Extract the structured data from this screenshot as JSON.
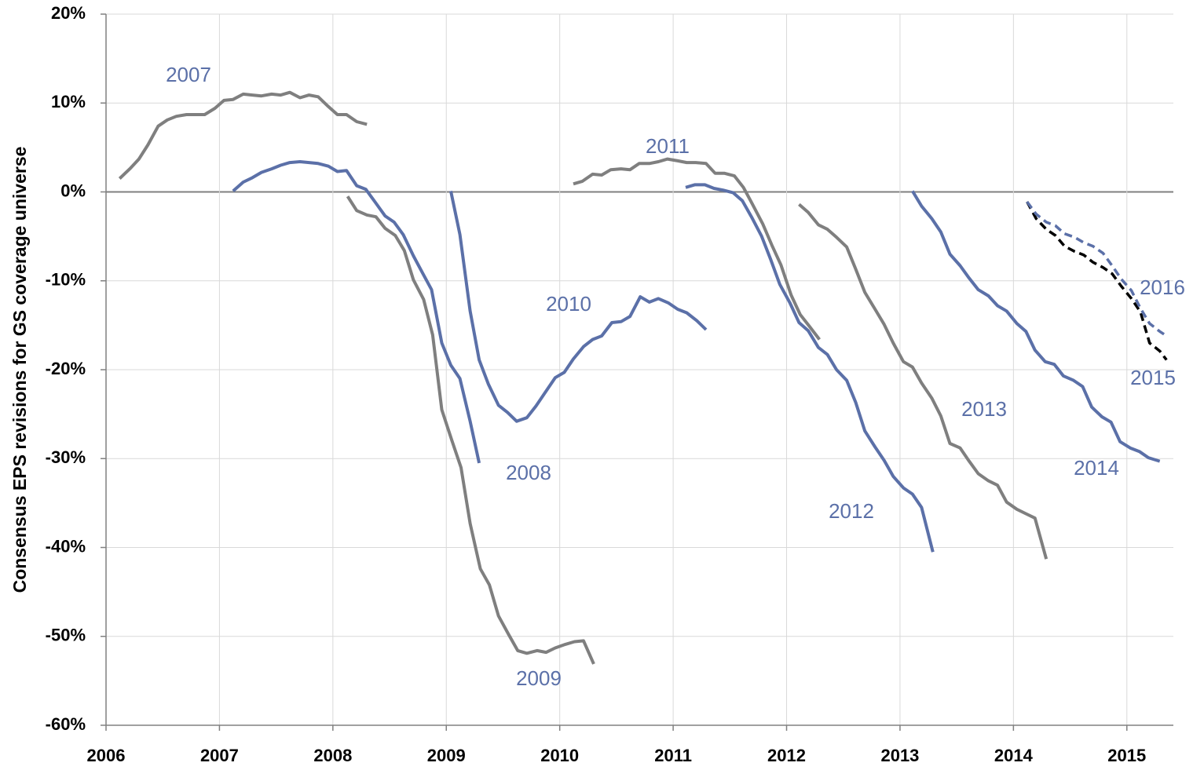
{
  "chart_data": {
    "type": "line",
    "y_axis_label": "Consensus EPS revisions for GS coverage universe",
    "xlim": [
      2006,
      2015.41
    ],
    "xticks": [
      2006,
      2007,
      2008,
      2009,
      2010,
      2011,
      2012,
      2013,
      2014,
      2015
    ],
    "ylim": [
      -60,
      20
    ],
    "yticks": [
      {
        "value": -60,
        "label": "-60%"
      },
      {
        "value": -50,
        "label": "-50%"
      },
      {
        "value": -40,
        "label": "-40%"
      },
      {
        "value": -30,
        "label": "-30%"
      },
      {
        "value": -20,
        "label": "-20%"
      },
      {
        "value": -10,
        "label": "-10%"
      },
      {
        "value": 0,
        "label": "0%"
      },
      {
        "value": 10,
        "label": "10%"
      },
      {
        "value": 20,
        "label": "20%"
      }
    ],
    "grid": true,
    "series": [
      {
        "name": "2007",
        "color": "#7f7f7f",
        "dash": false,
        "x": [
          2006.12,
          2006.21,
          2006.29,
          2006.37,
          2006.46,
          2006.54,
          2006.62,
          2006.71,
          2006.79,
          2006.87,
          2006.96,
          2007.04,
          2007.12,
          2007.21,
          2007.29,
          2007.37,
          2007.46,
          2007.54,
          2007.62,
          2007.71,
          2007.79,
          2007.87,
          2007.96,
          2008.04,
          2008.12,
          2008.21,
          2008.3
        ],
        "values": [
          1.5,
          2.6,
          3.7,
          5.3,
          7.4,
          8.1,
          8.5,
          8.7,
          8.7,
          8.7,
          9.4,
          10.3,
          10.4,
          11.0,
          10.9,
          10.8,
          11.0,
          10.9,
          11.2,
          10.6,
          10.9,
          10.7,
          9.6,
          8.7,
          8.7,
          7.9,
          7.6
        ]
      },
      {
        "name": "2008",
        "color": "#5b70a8",
        "dash": false,
        "x": [
          2007.12,
          2007.21,
          2007.29,
          2007.37,
          2007.46,
          2007.54,
          2007.62,
          2007.71,
          2007.79,
          2007.87,
          2007.96,
          2008.04,
          2008.12,
          2008.21,
          2008.29,
          2008.37,
          2008.46,
          2008.54,
          2008.62,
          2008.71,
          2008.79,
          2008.87,
          2008.96,
          2009.04,
          2009.12,
          2009.21,
          2009.29
        ],
        "values": [
          0.1,
          1.1,
          1.6,
          2.2,
          2.6,
          3.0,
          3.3,
          3.4,
          3.3,
          3.2,
          2.9,
          2.3,
          2.4,
          0.7,
          0.3,
          -1.1,
          -2.7,
          -3.4,
          -4.8,
          -7.2,
          -9.1,
          -11.0,
          -17.0,
          -19.5,
          -21.0,
          -25.8,
          -30.5
        ]
      },
      {
        "name": "2009",
        "color": "#7f7f7f",
        "dash": false,
        "x": [
          2008.13,
          2008.21,
          2008.3,
          2008.38,
          2008.46,
          2008.55,
          2008.63,
          2008.71,
          2008.8,
          2008.88,
          2008.96,
          2009.05,
          2009.13,
          2009.21,
          2009.3,
          2009.38,
          2009.46,
          2009.55,
          2009.63,
          2009.71,
          2009.8,
          2009.88,
          2009.96,
          2010.05,
          2010.13,
          2010.21,
          2010.3
        ],
        "values": [
          -0.5,
          -2.1,
          -2.6,
          -2.8,
          -4.1,
          -4.9,
          -6.6,
          -9.9,
          -12.1,
          -16.1,
          -24.5,
          -28.0,
          -31.0,
          -37.3,
          -42.4,
          -44.2,
          -47.7,
          -49.8,
          -51.6,
          -51.9,
          -51.6,
          -51.8,
          -51.3,
          -50.9,
          -50.6,
          -50.5,
          -53.1
        ]
      },
      {
        "name": "2010",
        "color": "#5b70a8",
        "dash": false,
        "x": [
          2009.04,
          2009.12,
          2009.21,
          2009.29,
          2009.37,
          2009.46,
          2009.54,
          2009.62,
          2009.71,
          2009.79,
          2009.87,
          2009.96,
          2010.04,
          2010.12,
          2010.21,
          2010.29,
          2010.37,
          2010.46,
          2010.54,
          2010.62,
          2010.71,
          2010.79,
          2010.87,
          2010.96,
          2011.04,
          2011.12,
          2011.21,
          2011.29
        ],
        "values": [
          0.1,
          -4.8,
          -13.4,
          -18.9,
          -21.6,
          -24.0,
          -24.8,
          -25.8,
          -25.4,
          -24.1,
          -22.6,
          -20.9,
          -20.3,
          -18.8,
          -17.4,
          -16.6,
          -16.2,
          -14.7,
          -14.6,
          -14.0,
          -11.8,
          -12.4,
          -12.0,
          -12.5,
          -13.2,
          -13.6,
          -14.5,
          -15.5
        ]
      },
      {
        "name": "2011",
        "color": "#7f7f7f",
        "dash": false,
        "x": [
          2010.12,
          2010.2,
          2010.29,
          2010.37,
          2010.45,
          2010.54,
          2010.62,
          2010.7,
          2010.79,
          2010.87,
          2010.95,
          2011.04,
          2011.12,
          2011.2,
          2011.29,
          2011.37,
          2011.45,
          2011.54,
          2011.62,
          2011.7,
          2011.79,
          2011.87,
          2011.95,
          2012.04,
          2012.12,
          2012.2,
          2012.29
        ],
        "values": [
          0.9,
          1.2,
          2.0,
          1.9,
          2.5,
          2.6,
          2.5,
          3.2,
          3.2,
          3.4,
          3.7,
          3.5,
          3.3,
          3.3,
          3.2,
          2.1,
          2.1,
          1.8,
          0.5,
          -1.4,
          -3.6,
          -6.0,
          -8.2,
          -11.6,
          -13.8,
          -15.1,
          -16.6
        ]
      },
      {
        "name": "2012",
        "color": "#5b70a8",
        "dash": false,
        "x": [
          2011.11,
          2011.19,
          2011.28,
          2011.36,
          2011.44,
          2011.53,
          2011.61,
          2011.69,
          2011.78,
          2011.86,
          2011.94,
          2012.03,
          2012.11,
          2012.19,
          2012.28,
          2012.36,
          2012.44,
          2012.53,
          2012.61,
          2012.69,
          2012.78,
          2012.86,
          2012.94,
          2013.03,
          2013.11,
          2013.19,
          2013.29
        ],
        "values": [
          0.5,
          0.8,
          0.8,
          0.4,
          0.2,
          -0.1,
          -1.0,
          -2.8,
          -5.0,
          -7.6,
          -10.4,
          -12.5,
          -14.7,
          -15.6,
          -17.5,
          -18.3,
          -20.0,
          -21.2,
          -23.7,
          -26.9,
          -28.7,
          -30.2,
          -32.0,
          -33.3,
          -34.0,
          -35.5,
          -40.5
        ]
      },
      {
        "name": "2013",
        "color": "#7f7f7f",
        "dash": false,
        "x": [
          2012.11,
          2012.19,
          2012.28,
          2012.36,
          2012.44,
          2012.53,
          2012.61,
          2012.69,
          2012.78,
          2012.86,
          2012.94,
          2013.03,
          2013.11,
          2013.19,
          2013.28,
          2013.36,
          2013.44,
          2013.53,
          2013.61,
          2013.69,
          2013.78,
          2013.86,
          2013.94,
          2014.03,
          2014.11,
          2014.19,
          2014.29
        ],
        "values": [
          -1.4,
          -2.3,
          -3.7,
          -4.2,
          -5.1,
          -6.2,
          -8.7,
          -11.3,
          -13.2,
          -14.9,
          -17.0,
          -19.1,
          -19.7,
          -21.5,
          -23.2,
          -25.2,
          -28.3,
          -28.8,
          -30.3,
          -31.7,
          -32.5,
          -33.0,
          -34.9,
          -35.7,
          -36.2,
          -36.7,
          -41.3
        ]
      },
      {
        "name": "2014",
        "color": "#5b70a8",
        "dash": false,
        "x": [
          2013.11,
          2013.19,
          2013.28,
          2013.36,
          2013.44,
          2013.53,
          2013.61,
          2013.69,
          2013.78,
          2013.86,
          2013.94,
          2014.03,
          2014.11,
          2014.19,
          2014.28,
          2014.36,
          2014.44,
          2014.53,
          2014.61,
          2014.69,
          2014.78,
          2014.86,
          2014.94,
          2015.03,
          2015.11,
          2015.19,
          2015.29
        ],
        "values": [
          0.1,
          -1.6,
          -3.0,
          -4.5,
          -7.0,
          -8.3,
          -9.7,
          -11.0,
          -11.7,
          -12.8,
          -13.4,
          -14.8,
          -15.7,
          -17.8,
          -19.1,
          -19.4,
          -20.7,
          -21.2,
          -21.9,
          -24.2,
          -25.3,
          -25.9,
          -28.1,
          -28.8,
          -29.2,
          -29.9,
          -30.3
        ]
      },
      {
        "name": "2015",
        "color": "#000000",
        "dash": true,
        "x": [
          2014.12,
          2014.2,
          2014.29,
          2014.37,
          2014.45,
          2014.54,
          2014.62,
          2014.7,
          2014.79,
          2014.87,
          2014.95,
          2015.04,
          2015.12,
          2015.2,
          2015.29,
          2015.35
        ],
        "values": [
          -1.1,
          -3.0,
          -4.2,
          -4.9,
          -6.1,
          -6.7,
          -7.1,
          -7.9,
          -8.5,
          -9.2,
          -10.6,
          -12.0,
          -13.5,
          -17.0,
          -17.9,
          -18.9
        ]
      },
      {
        "name": "2016",
        "color": "#5b70a8",
        "dash": true,
        "x": [
          2014.12,
          2014.2,
          2014.29,
          2014.37,
          2014.45,
          2014.54,
          2014.62,
          2014.7,
          2014.79,
          2014.87,
          2014.95,
          2015.04,
          2015.12,
          2015.2,
          2015.29,
          2015.35
        ],
        "values": [
          -1.1,
          -2.5,
          -3.4,
          -3.8,
          -4.7,
          -5.1,
          -5.7,
          -6.1,
          -6.9,
          -8.3,
          -9.8,
          -11.1,
          -13.1,
          -14.8,
          -15.7,
          -16.2
        ]
      }
    ]
  }
}
